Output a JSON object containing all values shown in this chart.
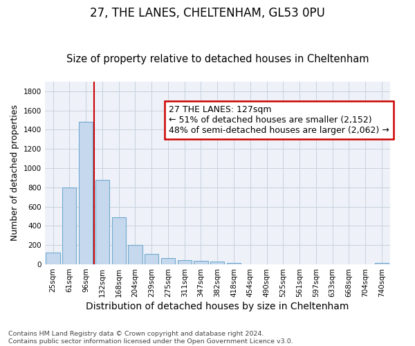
{
  "title1": "27, THE LANES, CHELTENHAM, GL53 0PU",
  "title2": "Size of property relative to detached houses in Cheltenham",
  "xlabel": "Distribution of detached houses by size in Cheltenham",
  "ylabel": "Number of detached properties",
  "categories": [
    "25sqm",
    "61sqm",
    "96sqm",
    "132sqm",
    "168sqm",
    "204sqm",
    "239sqm",
    "275sqm",
    "311sqm",
    "347sqm",
    "382sqm",
    "418sqm",
    "454sqm",
    "490sqm",
    "525sqm",
    "561sqm",
    "597sqm",
    "633sqm",
    "668sqm",
    "704sqm",
    "740sqm"
  ],
  "values": [
    125,
    800,
    1480,
    880,
    490,
    205,
    105,
    65,
    45,
    35,
    30,
    15,
    0,
    0,
    0,
    0,
    0,
    0,
    0,
    0,
    15
  ],
  "bar_color": "#c5d8ed",
  "bar_edge_color": "#6fa8d0",
  "vline_x": 2.5,
  "vline_color": "#cc0000",
  "annotation_line1": "27 THE LANES: 127sqm",
  "annotation_line2": "← 51% of detached houses are smaller (2,152)",
  "annotation_line3": "48% of semi-detached houses are larger (2,062) →",
  "annotation_box_color": "white",
  "annotation_border_color": "#cc0000",
  "ylim": [
    0,
    1900
  ],
  "yticks": [
    0,
    200,
    400,
    600,
    800,
    1000,
    1200,
    1400,
    1600,
    1800
  ],
  "background_color": "#eef2f8",
  "grid_color": "#c8d0de",
  "footer_text": "Contains HM Land Registry data © Crown copyright and database right 2024.\nContains public sector information licensed under the Open Government Licence v3.0.",
  "title1_fontsize": 12,
  "title2_fontsize": 10.5,
  "xlabel_fontsize": 10,
  "ylabel_fontsize": 9,
  "tick_fontsize": 7.5,
  "annotation_fontsize": 9,
  "footer_fontsize": 6.8
}
